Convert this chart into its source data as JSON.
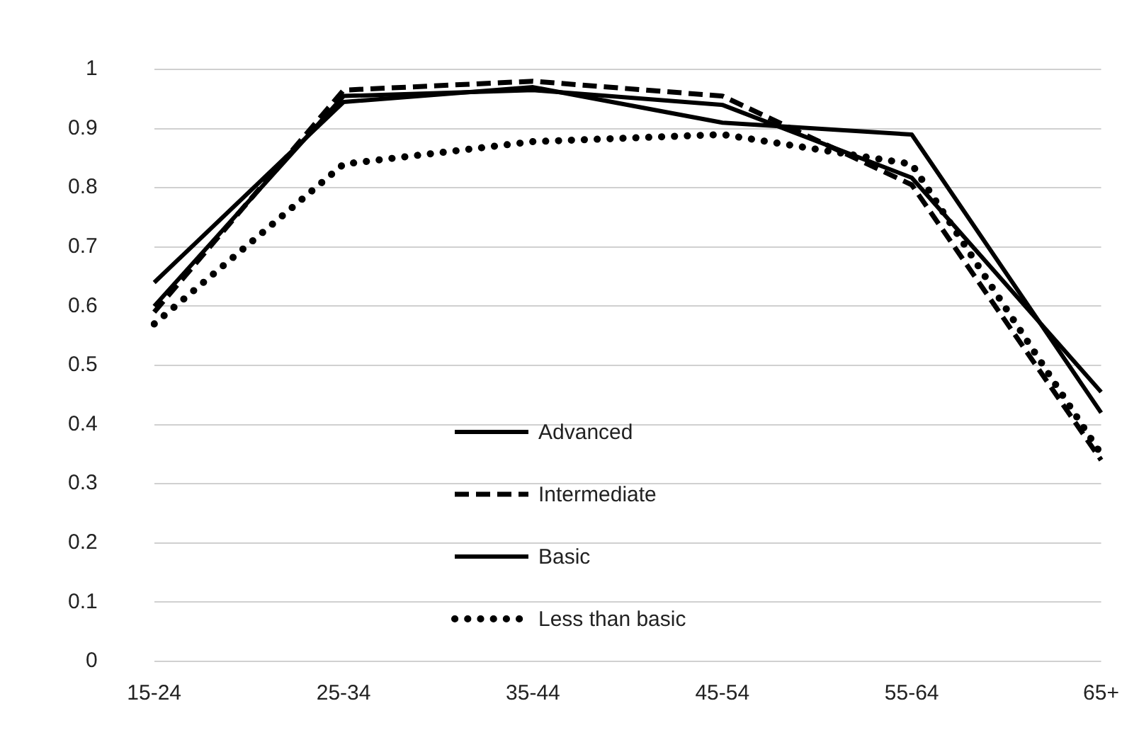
{
  "chart_data": {
    "type": "line",
    "categories": [
      "15-24",
      "25-34",
      "35-44",
      "45-54",
      "55-64",
      "65+"
    ],
    "series": [
      {
        "name": "Advanced",
        "color": "#000000",
        "line_style": "solid",
        "values": [
          0.64,
          0.945,
          0.97,
          0.91,
          0.89,
          0.42
        ]
      },
      {
        "name": "Intermediate",
        "color": "#000000",
        "line_style": "dashed",
        "values": [
          0.59,
          0.965,
          0.98,
          0.955,
          0.805,
          0.34
        ]
      },
      {
        "name": "Basic",
        "color": "#000000",
        "line_style": "solid",
        "values": [
          0.6,
          0.955,
          0.965,
          0.94,
          0.817,
          0.455
        ]
      },
      {
        "name": "Less than basic",
        "color": "#000000",
        "line_style": "dotted",
        "values": [
          0.57,
          0.84,
          0.878,
          0.89,
          0.84,
          0.35
        ]
      }
    ],
    "ylim": [
      0,
      1
    ],
    "yticks": [
      0,
      0.1,
      0.2,
      0.3,
      0.4,
      0.5,
      0.6,
      0.7,
      0.8,
      0.9,
      1
    ],
    "grid": "y",
    "legend": "bottom",
    "marker": "none"
  }
}
